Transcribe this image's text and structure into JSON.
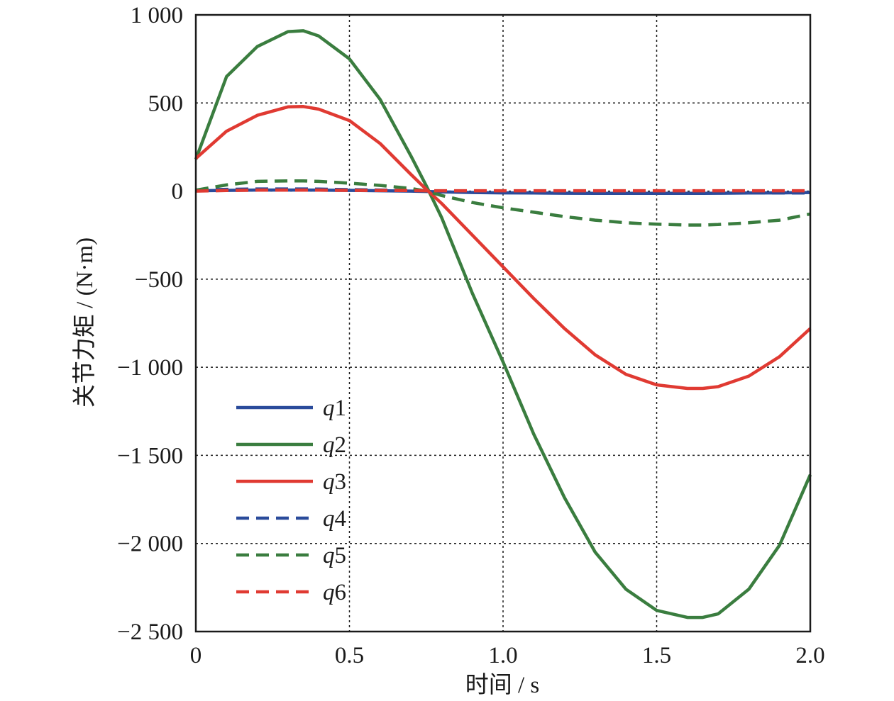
{
  "chart_data": {
    "type": "line",
    "xlabel": "时间 / s",
    "ylabel": "关节力矩 / (N·m)",
    "xlim": [
      0,
      2.0
    ],
    "ylim": [
      -2500,
      1000
    ],
    "x_ticks": [
      {
        "value": 0,
        "label": "0"
      },
      {
        "value": 0.5,
        "label": "0.5"
      },
      {
        "value": 1.0,
        "label": "1.0"
      },
      {
        "value": 1.5,
        "label": "1.5"
      },
      {
        "value": 2.0,
        "label": "2.0"
      }
    ],
    "y_ticks": [
      {
        "value": 1000,
        "label": "1 000"
      },
      {
        "value": 500,
        "label": "500"
      },
      {
        "value": 0,
        "label": "0"
      },
      {
        "value": -500,
        "label": "−500"
      },
      {
        "value": -1000,
        "label": "−1 000"
      },
      {
        "value": -1500,
        "label": "−1 500"
      },
      {
        "value": -2000,
        "label": "−2 000"
      },
      {
        "value": -2500,
        "label": "−2 500"
      }
    ],
    "grid": true,
    "legend_position": "lower-left",
    "x": [
      0,
      0.1,
      0.2,
      0.3,
      0.35,
      0.4,
      0.5,
      0.6,
      0.7,
      0.75,
      0.8,
      0.9,
      1.0,
      1.1,
      1.2,
      1.3,
      1.4,
      1.5,
      1.6,
      1.65,
      1.7,
      1.8,
      1.9,
      2.0
    ],
    "series": [
      {
        "name": "q1",
        "color": "#2a4b9b",
        "dash": "solid",
        "values": [
          2,
          4,
          6,
          6,
          6,
          5,
          4,
          2,
          0,
          -2,
          -5,
          -8,
          -10,
          -11,
          -12,
          -13,
          -13,
          -13,
          -13,
          -13,
          -12,
          -11,
          -10,
          -8
        ]
      },
      {
        "name": "q2",
        "color": "#3a7d3f",
        "dash": "solid",
        "values": [
          180,
          650,
          820,
          905,
          910,
          880,
          750,
          520,
          200,
          30,
          -150,
          -580,
          -970,
          -1380,
          -1740,
          -2050,
          -2260,
          -2380,
          -2420,
          -2420,
          -2400,
          -2260,
          -2010,
          -1610
        ]
      },
      {
        "name": "q3",
        "color": "#e03a32",
        "dash": "solid",
        "values": [
          185,
          340,
          430,
          478,
          480,
          465,
          400,
          270,
          95,
          10,
          -70,
          -250,
          -430,
          -610,
          -780,
          -930,
          -1040,
          -1100,
          -1120,
          -1120,
          -1110,
          -1050,
          -940,
          -780
        ]
      },
      {
        "name": "q4",
        "color": "#2a4b9b",
        "dash": "dashed",
        "values": [
          5,
          10,
          12,
          12,
          12,
          11,
          8,
          6,
          3,
          0,
          -2,
          -5,
          -7,
          -8,
          -9,
          -10,
          -10,
          -10,
          -11,
          -11,
          -11,
          -11,
          -11,
          -11
        ]
      },
      {
        "name": "q5",
        "color": "#3a7d3f",
        "dash": "dashed",
        "values": [
          5,
          35,
          55,
          58,
          58,
          55,
          45,
          32,
          15,
          0,
          -25,
          -65,
          -95,
          -120,
          -145,
          -165,
          -180,
          -188,
          -193,
          -193,
          -190,
          -180,
          -165,
          -130
        ]
      },
      {
        "name": "q6",
        "color": "#e03a32",
        "dash": "dashed",
        "values": [
          0,
          3,
          5,
          5,
          5,
          5,
          4,
          3,
          3,
          2,
          2,
          2,
          2,
          2,
          2,
          2,
          2,
          2,
          2,
          2,
          2,
          2,
          2,
          2
        ]
      }
    ]
  }
}
